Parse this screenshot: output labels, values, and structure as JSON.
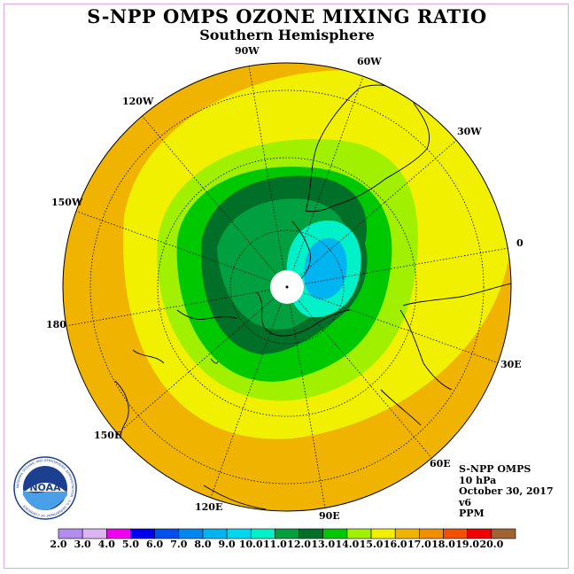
{
  "title": "S-NPP OMPS OZONE MIXING RATIO",
  "subtitle": "Southern Hemisphere",
  "info": {
    "product": "S-NPP OMPS",
    "level": "10 hPa",
    "date": "October 30, 2017",
    "version": "v6",
    "units": "PPM"
  },
  "logo": {
    "text": "NOAA",
    "ring_text": "NATIONAL OCEANIC AND ATMOSPHERIC ADMINISTRATION · U.S. DEPARTMENT OF COMMERCE"
  },
  "longitude_labels": [
    "90W",
    "60W",
    "30W",
    "0",
    "30E",
    "60E",
    "90E",
    "120E",
    "150E",
    "180",
    "150W",
    "120W"
  ],
  "colorbar": {
    "ticks": [
      "2.0",
      "3.0",
      "4.0",
      "5.0",
      "6.0",
      "7.0",
      "8.0",
      "9.0",
      "10.0",
      "11.0",
      "12.0",
      "13.0",
      "14.0",
      "15.0",
      "16.0",
      "17.0",
      "18.0",
      "19.0",
      "20.0"
    ],
    "colors": [
      "#b48cf0",
      "#dcb4f0",
      "#f000f0",
      "#0000f0",
      "#0050f0",
      "#0088f0",
      "#00b4f0",
      "#00d8f0",
      "#00f0c8",
      "#00a040",
      "#007028",
      "#00c800",
      "#a0f000",
      "#f0f000",
      "#f0b400",
      "#f09000",
      "#f05000",
      "#f00000",
      "#a06432"
    ]
  }
}
